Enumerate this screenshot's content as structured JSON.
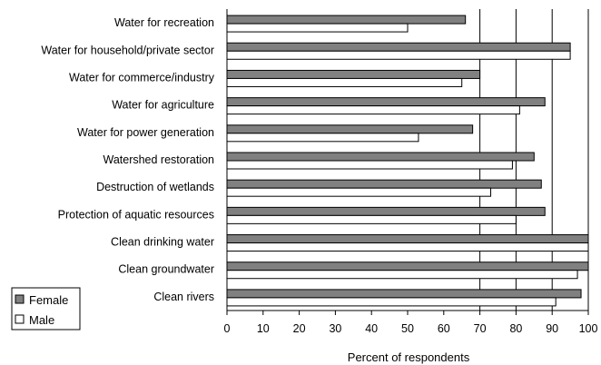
{
  "chart_data": {
    "type": "bar",
    "orientation": "horizontal",
    "categories": [
      "Water for recreation",
      "Water for household/private sector",
      "Water for commerce/industry",
      "Water for agriculture",
      "Water for power generation",
      "Watershed restoration",
      "Destruction of wetlands",
      "Protection of aquatic resources",
      "Clean drinking water",
      "Clean groundwater",
      "Clean rivers"
    ],
    "series": [
      {
        "name": "Female",
        "color": "#808080",
        "values": [
          66,
          95,
          70,
          88,
          68,
          85,
          87,
          88,
          100,
          100,
          98
        ]
      },
      {
        "name": "Male",
        "color": "#ffffff",
        "values": [
          50,
          95,
          65,
          81,
          53,
          79,
          73,
          80,
          100,
          97,
          91
        ]
      }
    ],
    "xlabel": "Percent of respondents",
    "ylabel": "",
    "xlim": [
      0,
      100
    ],
    "xticks": [
      "0",
      "10",
      "20",
      "30",
      "40",
      "50",
      "60",
      "70",
      "80",
      "90",
      "100"
    ],
    "grid": "vertical lines at 70, 80, 90, 100",
    "legend": {
      "position": "bottom-left",
      "entries": [
        "Female",
        "Male"
      ]
    }
  }
}
